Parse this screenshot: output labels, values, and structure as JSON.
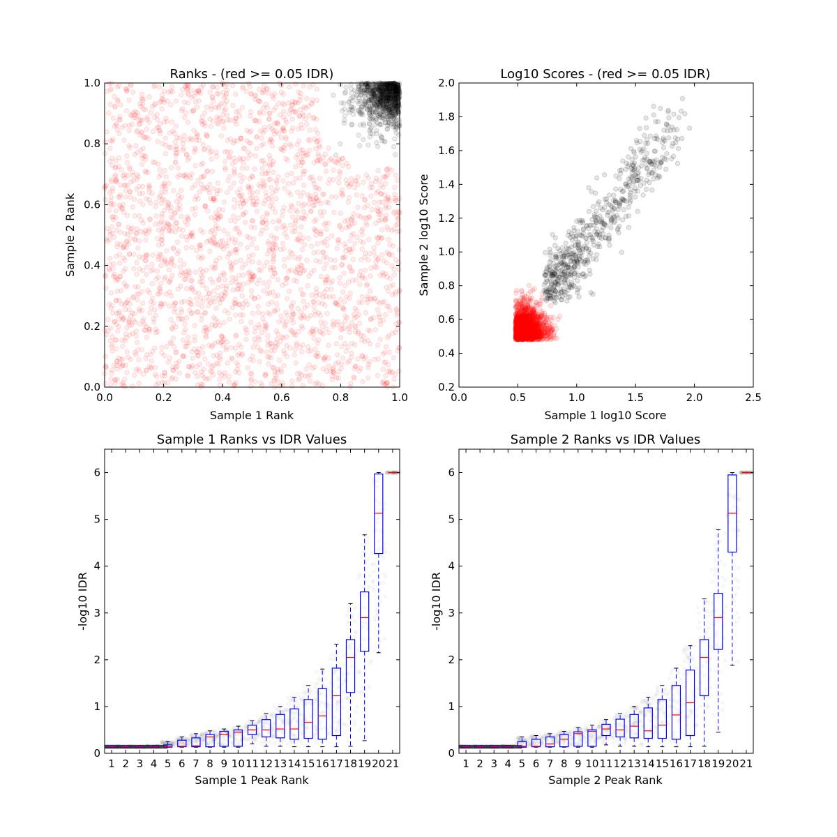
{
  "chart_data": [
    {
      "type": "scatter",
      "title": "Ranks - (red >= 0.05 IDR)",
      "xlabel": "Sample 1 Rank",
      "ylabel": "Sample 2 Rank",
      "xlim": [
        0.0,
        1.0
      ],
      "ylim": [
        0.0,
        1.0
      ],
      "xticks": [
        "0.0",
        "0.2",
        "0.4",
        "0.6",
        "0.8",
        "1.0"
      ],
      "yticks": [
        "0.0",
        "0.2",
        "0.4",
        "0.6",
        "0.8",
        "1.0"
      ],
      "grid": false,
      "colors": {
        "pass": "#000000",
        "fail": "#ff0000"
      },
      "series": [
        {
          "color": "#ff0000",
          "description_points": [
            [
              0.05,
              0.9
            ],
            [
              0.12,
              0.75
            ],
            [
              0.2,
              0.55
            ],
            [
              0.3,
              0.33
            ],
            [
              0.35,
              0.22
            ],
            [
              0.38,
              0.4
            ],
            [
              0.52,
              0.54
            ],
            [
              0.48,
              0.74
            ],
            [
              0.62,
              0.62
            ],
            [
              0.7,
              0.3
            ],
            [
              0.82,
              0.12
            ],
            [
              0.9,
              0.5
            ],
            [
              0.15,
              0.13
            ],
            [
              0.22,
              0.2
            ],
            [
              0.03,
              0.03
            ],
            [
              0.6,
              0.8
            ],
            [
              0.78,
              0.7
            ],
            [
              0.45,
              0.05
            ]
          ]
        },
        {
          "color": "#000000",
          "description_points": [
            [
              0.75,
              0.88
            ],
            [
              0.8,
              0.82
            ],
            [
              0.85,
              0.9
            ],
            [
              0.88,
              0.85
            ],
            [
              0.9,
              0.95
            ],
            [
              0.95,
              0.97
            ],
            [
              0.98,
              0.99
            ],
            [
              0.93,
              0.88
            ],
            [
              0.82,
              0.95
            ],
            [
              0.86,
              0.78
            ]
          ]
        }
      ]
    },
    {
      "type": "scatter",
      "title": "Log10 Scores - (red >= 0.05 IDR)",
      "xlabel": "Sample 1 log10 Score",
      "ylabel": "Sample 2 log10 Score",
      "xlim": [
        0.0,
        2.5
      ],
      "ylim": [
        0.2,
        2.0
      ],
      "xticks": [
        "0.0",
        "0.5",
        "1.0",
        "1.5",
        "2.0",
        "2.5"
      ],
      "yticks": [
        "0.2",
        "0.4",
        "0.6",
        "0.8",
        "1.0",
        "1.2",
        "1.4",
        "1.6",
        "1.8",
        "2.0"
      ],
      "grid": false,
      "series": [
        {
          "color": "#ff0000",
          "description_points": [
            [
              0.5,
              0.5
            ],
            [
              0.55,
              0.55
            ],
            [
              0.6,
              0.6
            ],
            [
              0.65,
              0.7
            ],
            [
              0.7,
              0.55
            ],
            [
              0.8,
              0.6
            ],
            [
              0.9,
              0.5
            ],
            [
              0.52,
              0.9
            ],
            [
              0.55,
              1.05
            ],
            [
              1.1,
              0.55
            ]
          ]
        },
        {
          "color": "#000000",
          "description_points": [
            [
              0.8,
              0.8
            ],
            [
              0.9,
              0.95
            ],
            [
              1.0,
              1.0
            ],
            [
              1.1,
              1.1
            ],
            [
              1.2,
              1.2
            ],
            [
              1.3,
              1.3
            ],
            [
              1.4,
              1.4
            ],
            [
              1.5,
              1.6
            ],
            [
              1.75,
              1.75
            ],
            [
              2.05,
              1.9
            ],
            [
              0.75,
              0.72
            ]
          ]
        }
      ]
    },
    {
      "type": "box",
      "title": "Sample 1 Ranks vs IDR Values",
      "xlabel": "Sample 1 Peak Rank",
      "ylabel": "-log10 IDR",
      "ylim": [
        0,
        6.5
      ],
      "xticks": [
        "1",
        "2",
        "3",
        "4",
        "5",
        "6",
        "7",
        "8",
        "9",
        "10",
        "11",
        "12",
        "13",
        "14",
        "15",
        "16",
        "17",
        "18",
        "19",
        "20",
        "21"
      ],
      "yticks": [
        "0",
        "1",
        "2",
        "3",
        "4",
        "5",
        "6"
      ],
      "boxes": [
        {
          "position": 1,
          "q1": 0.13,
          "median": 0.14,
          "q3": 0.15,
          "whisker_low": 0.13,
          "whisker_high": 0.15
        },
        {
          "position": 2,
          "q1": 0.13,
          "median": 0.14,
          "q3": 0.15,
          "whisker_low": 0.13,
          "whisker_high": 0.15
        },
        {
          "position": 3,
          "q1": 0.13,
          "median": 0.14,
          "q3": 0.15,
          "whisker_low": 0.13,
          "whisker_high": 0.15
        },
        {
          "position": 4,
          "q1": 0.13,
          "median": 0.14,
          "q3": 0.15,
          "whisker_low": 0.13,
          "whisker_high": 0.16
        },
        {
          "position": 5,
          "q1": 0.13,
          "median": 0.14,
          "q3": 0.18,
          "whisker_low": 0.13,
          "whisker_high": 0.25
        },
        {
          "position": 6,
          "q1": 0.14,
          "median": 0.15,
          "q3": 0.28,
          "whisker_low": 0.13,
          "whisker_high": 0.35
        },
        {
          "position": 7,
          "q1": 0.14,
          "median": 0.16,
          "q3": 0.33,
          "whisker_low": 0.13,
          "whisker_high": 0.42
        },
        {
          "position": 8,
          "q1": 0.14,
          "median": 0.35,
          "q3": 0.4,
          "whisker_low": 0.13,
          "whisker_high": 0.48
        },
        {
          "position": 9,
          "q1": 0.15,
          "median": 0.4,
          "q3": 0.47,
          "whisker_low": 0.13,
          "whisker_high": 0.52
        },
        {
          "position": 10,
          "q1": 0.15,
          "median": 0.45,
          "q3": 0.5,
          "whisker_low": 0.13,
          "whisker_high": 0.58
        },
        {
          "position": 11,
          "q1": 0.4,
          "median": 0.5,
          "q3": 0.6,
          "whisker_low": 0.2,
          "whisker_high": 0.7
        },
        {
          "position": 12,
          "q1": 0.35,
          "median": 0.5,
          "q3": 0.72,
          "whisker_low": 0.15,
          "whisker_high": 0.85
        },
        {
          "position": 13,
          "q1": 0.33,
          "median": 0.52,
          "q3": 0.83,
          "whisker_low": 0.15,
          "whisker_high": 1.0
        },
        {
          "position": 14,
          "q1": 0.3,
          "median": 0.52,
          "q3": 0.95,
          "whisker_low": 0.14,
          "whisker_high": 1.2
        },
        {
          "position": 15,
          "q1": 0.32,
          "median": 0.66,
          "q3": 1.15,
          "whisker_low": 0.14,
          "whisker_high": 1.45
        },
        {
          "position": 16,
          "q1": 0.3,
          "median": 0.8,
          "q3": 1.38,
          "whisker_low": 0.14,
          "whisker_high": 1.8
        },
        {
          "position": 17,
          "q1": 0.38,
          "median": 1.23,
          "q3": 1.82,
          "whisker_low": 0.14,
          "whisker_high": 2.33
        },
        {
          "position": 18,
          "q1": 1.3,
          "median": 2.05,
          "q3": 2.43,
          "whisker_low": 0.15,
          "whisker_high": 3.2
        },
        {
          "position": 19,
          "q1": 2.18,
          "median": 2.9,
          "q3": 3.45,
          "whisker_low": 0.27,
          "whisker_high": 4.67
        },
        {
          "position": 20,
          "q1": 4.27,
          "median": 5.13,
          "q3": 5.97,
          "whisker_low": 2.15,
          "whisker_high": 6.0
        },
        {
          "position": 21,
          "q1": 6.0,
          "median": 6.0,
          "q3": 6.0,
          "whisker_low": 6.0,
          "whisker_high": 6.0
        }
      ]
    },
    {
      "type": "box",
      "title": "Sample 2 Ranks vs IDR Values",
      "xlabel": "Sample 2 Peak Rank",
      "ylabel": "-log10 IDR",
      "ylim": [
        0,
        6.5
      ],
      "xticks": [
        "1",
        "2",
        "3",
        "4",
        "5",
        "6",
        "7",
        "8",
        "9",
        "10",
        "11",
        "12",
        "13",
        "14",
        "15",
        "16",
        "17",
        "18",
        "19",
        "20",
        "21"
      ],
      "yticks": [
        "0",
        "1",
        "2",
        "3",
        "4",
        "5",
        "6"
      ],
      "boxes": [
        {
          "position": 1,
          "q1": 0.13,
          "median": 0.14,
          "q3": 0.15,
          "whisker_low": 0.13,
          "whisker_high": 0.15
        },
        {
          "position": 2,
          "q1": 0.13,
          "median": 0.14,
          "q3": 0.15,
          "whisker_low": 0.13,
          "whisker_high": 0.15
        },
        {
          "position": 3,
          "q1": 0.13,
          "median": 0.14,
          "q3": 0.15,
          "whisker_low": 0.13,
          "whisker_high": 0.15
        },
        {
          "position": 4,
          "q1": 0.13,
          "median": 0.14,
          "q3": 0.15,
          "whisker_low": 0.13,
          "whisker_high": 0.16
        },
        {
          "position": 5,
          "q1": 0.13,
          "median": 0.15,
          "q3": 0.25,
          "whisker_low": 0.13,
          "whisker_high": 0.35
        },
        {
          "position": 6,
          "q1": 0.14,
          "median": 0.15,
          "q3": 0.3,
          "whisker_low": 0.13,
          "whisker_high": 0.38
        },
        {
          "position": 7,
          "q1": 0.14,
          "median": 0.2,
          "q3": 0.35,
          "whisker_low": 0.13,
          "whisker_high": 0.42
        },
        {
          "position": 8,
          "q1": 0.14,
          "median": 0.3,
          "q3": 0.4,
          "whisker_low": 0.13,
          "whisker_high": 0.47
        },
        {
          "position": 9,
          "q1": 0.15,
          "median": 0.42,
          "q3": 0.46,
          "whisker_low": 0.13,
          "whisker_high": 0.55
        },
        {
          "position": 10,
          "q1": 0.15,
          "median": 0.47,
          "q3": 0.5,
          "whisker_low": 0.13,
          "whisker_high": 0.6
        },
        {
          "position": 11,
          "q1": 0.38,
          "median": 0.52,
          "q3": 0.62,
          "whisker_low": 0.18,
          "whisker_high": 0.72
        },
        {
          "position": 12,
          "q1": 0.35,
          "median": 0.5,
          "q3": 0.73,
          "whisker_low": 0.15,
          "whisker_high": 0.85
        },
        {
          "position": 13,
          "q1": 0.33,
          "median": 0.58,
          "q3": 0.83,
          "whisker_low": 0.15,
          "whisker_high": 1.0
        },
        {
          "position": 14,
          "q1": 0.32,
          "median": 0.48,
          "q3": 0.97,
          "whisker_low": 0.14,
          "whisker_high": 1.2
        },
        {
          "position": 15,
          "q1": 0.32,
          "median": 0.6,
          "q3": 1.15,
          "whisker_low": 0.14,
          "whisker_high": 1.45
        },
        {
          "position": 16,
          "q1": 0.3,
          "median": 0.82,
          "q3": 1.45,
          "whisker_low": 0.14,
          "whisker_high": 1.82
        },
        {
          "position": 17,
          "q1": 0.38,
          "median": 1.08,
          "q3": 1.78,
          "whisker_low": 0.14,
          "whisker_high": 2.3
        },
        {
          "position": 18,
          "q1": 1.23,
          "median": 2.05,
          "q3": 2.43,
          "whisker_low": 0.15,
          "whisker_high": 3.3
        },
        {
          "position": 19,
          "q1": 2.22,
          "median": 2.9,
          "q3": 3.42,
          "whisker_low": 0.45,
          "whisker_high": 4.78
        },
        {
          "position": 20,
          "q1": 4.3,
          "median": 5.13,
          "q3": 5.95,
          "whisker_low": 1.88,
          "whisker_high": 6.0
        },
        {
          "position": 21,
          "q1": 6.0,
          "median": 6.0,
          "q3": 6.0,
          "whisker_low": 6.0,
          "whisker_high": 6.0
        }
      ]
    }
  ]
}
